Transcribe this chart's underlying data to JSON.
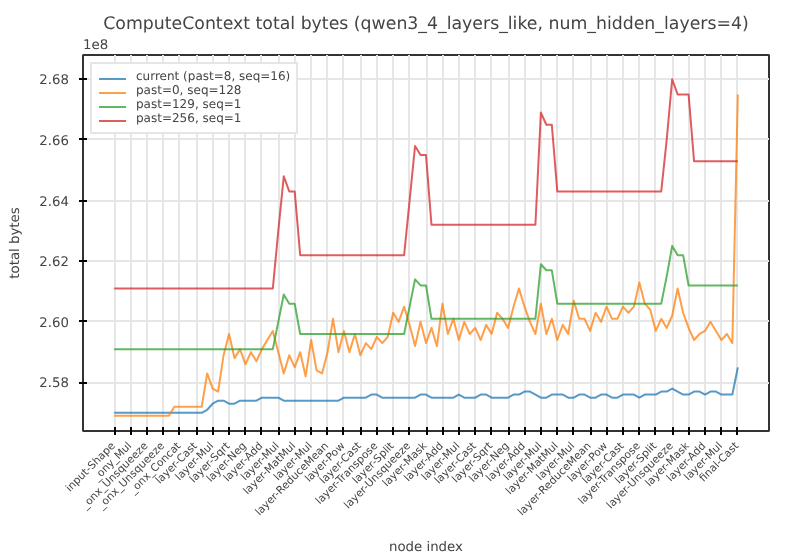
{
  "chart_data": {
    "type": "line",
    "title": "ComputeContext total bytes (qwen3_4_layers_like, num_hidden_layers=4)",
    "xlabel": "node index",
    "ylabel": "total bytes",
    "annotations": [
      "1e8"
    ],
    "categories": [
      "input-Shape",
      null,
      null,
      "_ony_Mul",
      null,
      null,
      "_onx_Unsqueeze",
      null,
      null,
      "_onx_Unsqueeze",
      null,
      null,
      "_onx_Concat",
      null,
      null,
      "layer-Cast",
      null,
      null,
      "layer-Mul",
      null,
      null,
      "layer-Sqrt",
      null,
      null,
      "layer-Neg",
      null,
      null,
      "layer-Add",
      null,
      null,
      "layer-Mul",
      null,
      null,
      "layer-MatMul",
      null,
      null,
      "layer-Mul",
      null,
      null,
      "layer-ReduceMean",
      null,
      null,
      "layer-Pow",
      null,
      null,
      "layer-Cast",
      null,
      null,
      "layer-Transpose",
      null,
      null,
      "layer-Split",
      null,
      null,
      "layer-Unsqueeze",
      null,
      null,
      "layer-Mask",
      null,
      null,
      "layer-Add",
      null,
      null,
      "layer-Mul",
      null,
      null,
      "layer-Cast",
      null,
      null,
      "layer-Sqrt",
      null,
      null,
      "layer-Neg",
      null,
      null,
      "layer-Add",
      null,
      null,
      "layer-Mul",
      null,
      null,
      "layer-MatMul",
      null,
      null,
      "layer-Mul",
      null,
      null,
      "layer-ReduceMean",
      null,
      null,
      "layer-Pow",
      null,
      null,
      "layer-Cast",
      null,
      null,
      "layer-Transpose",
      null,
      null,
      "layer-Split",
      null,
      null,
      "layer-Unsqueeze",
      null,
      null,
      "layer-Mask",
      null,
      null,
      "layer-Add",
      null,
      null,
      "layer-Mul",
      null,
      null,
      "final-Cast"
    ],
    "ylim": [
      2.564,
      2.688
    ],
    "yticks": [
      2.58,
      {
        "value": 2.6,
        "label": "2.60"
      },
      2.62,
      2.64,
      2.66,
      2.68
    ],
    "grid": true,
    "legend": "top left",
    "series": [
      {
        "name": "current (past=8, seq=16)",
        "color": "#1f77b4",
        "values": [
          2.57,
          2.57,
          2.57,
          2.57,
          2.57,
          2.57,
          2.57,
          2.57,
          2.57,
          2.57,
          2.57,
          2.57,
          2.57,
          2.57,
          2.57,
          2.57,
          2.57,
          2.571,
          2.573,
          2.574,
          2.574,
          2.573,
          2.573,
          2.574,
          2.574,
          2.574,
          2.574,
          2.575,
          2.575,
          2.575,
          2.575,
          2.574,
          2.574,
          2.574,
          2.574,
          2.574,
          2.574,
          2.574,
          2.574,
          2.574,
          2.574,
          2.574,
          2.575,
          2.575,
          2.575,
          2.575,
          2.575,
          2.576,
          2.576,
          2.575,
          2.575,
          2.575,
          2.575,
          2.575,
          2.575,
          2.575,
          2.576,
          2.576,
          2.575,
          2.575,
          2.575,
          2.575,
          2.575,
          2.576,
          2.575,
          2.575,
          2.575,
          2.576,
          2.576,
          2.575,
          2.575,
          2.575,
          2.575,
          2.576,
          2.576,
          2.577,
          2.577,
          2.576,
          2.575,
          2.575,
          2.576,
          2.576,
          2.576,
          2.575,
          2.575,
          2.576,
          2.576,
          2.575,
          2.575,
          2.576,
          2.576,
          2.575,
          2.575,
          2.576,
          2.576,
          2.576,
          2.575,
          2.576,
          2.576,
          2.576,
          2.577,
          2.577,
          2.578,
          2.577,
          2.576,
          2.576,
          2.577,
          2.577,
          2.576,
          2.577,
          2.577,
          2.576,
          2.576,
          2.576,
          2.585
        ]
      },
      {
        "name": "past=0, seq=128",
        "color": "#ff7f0e",
        "values": [
          2.569,
          2.569,
          2.569,
          2.569,
          2.569,
          2.569,
          2.569,
          2.569,
          2.569,
          2.569,
          2.569,
          2.572,
          2.572,
          2.572,
          2.572,
          2.572,
          2.572,
          2.583,
          2.578,
          2.577,
          2.589,
          2.596,
          2.588,
          2.591,
          2.586,
          2.59,
          2.587,
          2.591,
          2.594,
          2.597,
          2.59,
          2.583,
          2.589,
          2.585,
          2.59,
          2.582,
          2.594,
          2.584,
          2.583,
          2.59,
          2.601,
          2.59,
          2.597,
          2.59,
          2.596,
          2.589,
          2.593,
          2.591,
          2.595,
          2.593,
          2.595,
          2.603,
          2.6,
          2.605,
          2.599,
          2.592,
          2.6,
          2.593,
          2.598,
          2.592,
          2.606,
          2.596,
          2.601,
          2.594,
          2.6,
          2.596,
          2.598,
          2.594,
          2.599,
          2.596,
          2.603,
          2.601,
          2.598,
          2.605,
          2.611,
          2.605,
          2.6,
          2.596,
          2.606,
          2.596,
          2.601,
          2.594,
          2.599,
          2.596,
          2.607,
          2.601,
          2.601,
          2.597,
          2.603,
          2.6,
          2.605,
          2.601,
          2.601,
          2.605,
          2.603,
          2.605,
          2.613,
          2.606,
          2.604,
          2.597,
          2.601,
          2.598,
          2.602,
          2.611,
          2.603,
          2.598,
          2.594,
          2.596,
          2.597,
          2.6,
          2.597,
          2.594,
          2.596,
          2.593,
          2.675
        ]
      },
      {
        "name": "past=129, seq=1",
        "color": "#2ca02c",
        "values": [
          2.591,
          2.591,
          2.591,
          2.591,
          2.591,
          2.591,
          2.591,
          2.591,
          2.591,
          2.591,
          2.591,
          2.591,
          2.591,
          2.591,
          2.591,
          2.591,
          2.591,
          2.591,
          2.591,
          2.591,
          2.591,
          2.591,
          2.591,
          2.591,
          2.591,
          2.591,
          2.591,
          2.591,
          2.591,
          2.591,
          2.6,
          2.609,
          2.606,
          2.606,
          2.596,
          2.596,
          2.596,
          2.596,
          2.596,
          2.596,
          2.596,
          2.596,
          2.596,
          2.596,
          2.596,
          2.596,
          2.596,
          2.596,
          2.596,
          2.596,
          2.596,
          2.596,
          2.596,
          2.596,
          2.605,
          2.614,
          2.612,
          2.612,
          2.601,
          2.601,
          2.601,
          2.601,
          2.601,
          2.601,
          2.601,
          2.601,
          2.601,
          2.601,
          2.601,
          2.601,
          2.601,
          2.601,
          2.601,
          2.601,
          2.601,
          2.601,
          2.601,
          2.601,
          2.619,
          2.617,
          2.617,
          2.606,
          2.606,
          2.606,
          2.606,
          2.606,
          2.606,
          2.606,
          2.606,
          2.606,
          2.606,
          2.606,
          2.606,
          2.606,
          2.606,
          2.606,
          2.606,
          2.606,
          2.606,
          2.606,
          2.606,
          2.615,
          2.625,
          2.622,
          2.622,
          2.612,
          2.612,
          2.612,
          2.612,
          2.612,
          2.612,
          2.612,
          2.612,
          2.612,
          2.612
        ]
      },
      {
        "name": "past=256, seq=1",
        "color": "#d62728",
        "values": [
          2.611,
          2.611,
          2.611,
          2.611,
          2.611,
          2.611,
          2.611,
          2.611,
          2.611,
          2.611,
          2.611,
          2.611,
          2.611,
          2.611,
          2.611,
          2.611,
          2.611,
          2.611,
          2.611,
          2.611,
          2.611,
          2.611,
          2.611,
          2.611,
          2.611,
          2.611,
          2.611,
          2.611,
          2.611,
          2.611,
          2.63,
          2.648,
          2.643,
          2.643,
          2.622,
          2.622,
          2.622,
          2.622,
          2.622,
          2.622,
          2.622,
          2.622,
          2.622,
          2.622,
          2.622,
          2.622,
          2.622,
          2.622,
          2.622,
          2.622,
          2.622,
          2.622,
          2.622,
          2.622,
          2.64,
          2.658,
          2.655,
          2.655,
          2.632,
          2.632,
          2.632,
          2.632,
          2.632,
          2.632,
          2.632,
          2.632,
          2.632,
          2.632,
          2.632,
          2.632,
          2.632,
          2.632,
          2.632,
          2.632,
          2.632,
          2.632,
          2.632,
          2.632,
          2.669,
          2.665,
          2.665,
          2.643,
          2.643,
          2.643,
          2.643,
          2.643,
          2.643,
          2.643,
          2.643,
          2.643,
          2.643,
          2.643,
          2.643,
          2.643,
          2.643,
          2.643,
          2.643,
          2.643,
          2.643,
          2.643,
          2.643,
          2.66,
          2.68,
          2.675,
          2.675,
          2.675,
          2.653,
          2.653,
          2.653,
          2.653,
          2.653,
          2.653,
          2.653,
          2.653,
          2.653
        ]
      }
    ]
  }
}
